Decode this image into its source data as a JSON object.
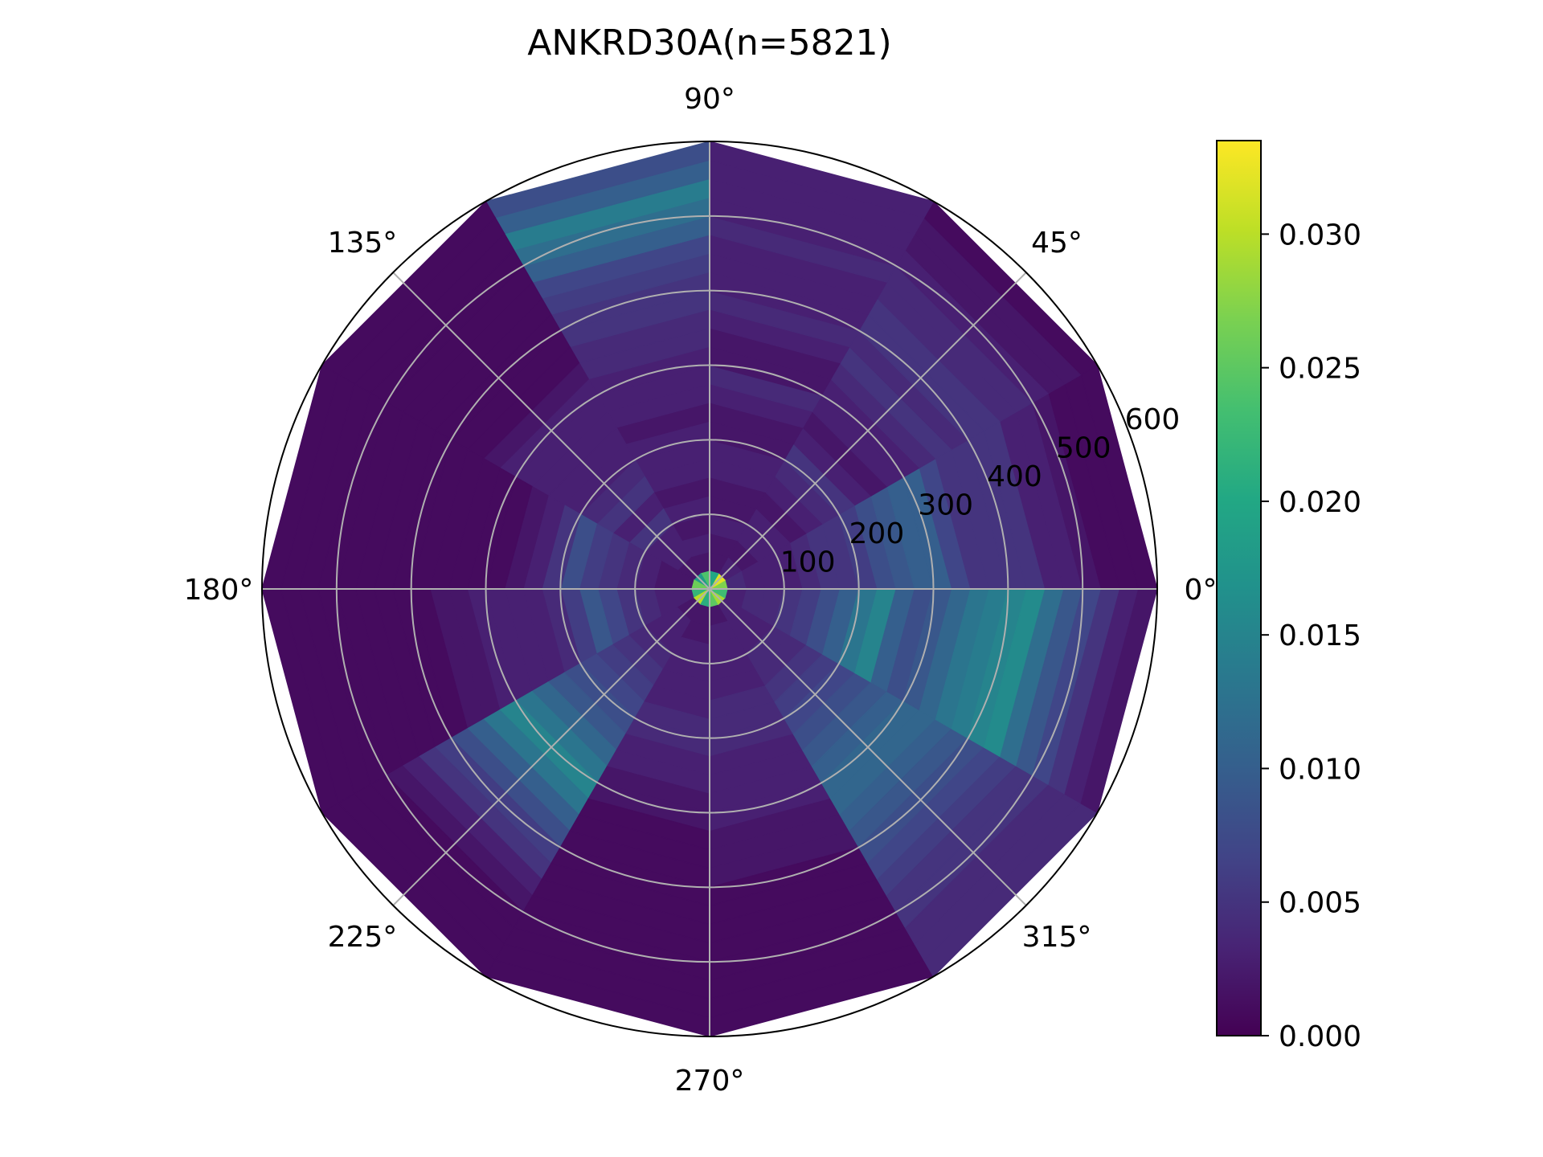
{
  "chart_data": {
    "type": "heatmap",
    "projection": "polar",
    "title": "ANKRD30A(n=5821)",
    "theta_unit": "degrees",
    "theta_tick_labels": [
      "0°",
      "45°",
      "90°",
      "135°",
      "180°",
      "225°",
      "270°",
      "315°"
    ],
    "r_tick_labels": [
      "100",
      "200",
      "300",
      "400",
      "500",
      "600"
    ],
    "r_ticks": [
      100,
      200,
      300,
      400,
      500,
      600
    ],
    "r_range": [
      0,
      600
    ],
    "grid": true,
    "colormap": "viridis",
    "colorbar": {
      "range": [
        0,
        0.0335
      ],
      "ticks": [
        0.0,
        0.005,
        0.01,
        0.015,
        0.02,
        0.025,
        0.03
      ],
      "tick_labels": [
        "0.000",
        "0.005",
        "0.010",
        "0.015",
        "0.020",
        "0.025",
        "0.030"
      ],
      "location": "right"
    },
    "theta_bin_edges_deg": [
      0,
      30,
      60,
      90,
      120,
      150,
      180,
      210,
      240,
      270,
      300,
      330,
      360
    ],
    "r_bin_edges": [
      0,
      25,
      50,
      75,
      100,
      125,
      150,
      175,
      200,
      225,
      250,
      275,
      300,
      325,
      350,
      375,
      400,
      425,
      450,
      475,
      500,
      525,
      550,
      575,
      600
    ],
    "values": [
      [
        0.027,
        0.004,
        0.003,
        0.003,
        0.003,
        0.004,
        0.005,
        0.005,
        0.006,
        0.008,
        0.009,
        0.01,
        0.01,
        0.007,
        0.005,
        0.005,
        0.005,
        0.005,
        0.003,
        0.003,
        0.002,
        0.001,
        0.001,
        0.001
      ],
      [
        0.032,
        0.003,
        0.002,
        0.003,
        0.003,
        0.002,
        0.003,
        0.004,
        0.005,
        0.003,
        0.002,
        0.003,
        0.003,
        0.004,
        0.005,
        0.004,
        0.005,
        0.005,
        0.004,
        0.004,
        0.003,
        0.002,
        0.002,
        0.001
      ],
      [
        0.02,
        0.002,
        0.002,
        0.003,
        0.002,
        0.002,
        0.003,
        0.003,
        0.002,
        0.002,
        0.003,
        0.004,
        0.002,
        0.002,
        0.003,
        0.004,
        0.003,
        0.003,
        0.003,
        0.004,
        0.003,
        0.003,
        0.003,
        0.003
      ],
      [
        0.024,
        0.002,
        0.003,
        0.002,
        0.003,
        0.002,
        0.003,
        0.003,
        0.003,
        0.002,
        0.003,
        0.003,
        0.003,
        0.004,
        0.004,
        0.005,
        0.005,
        0.006,
        0.007,
        0.01,
        0.012,
        0.014,
        0.01,
        0.008
      ],
      [
        0.018,
        0.002,
        0.003,
        0.003,
        0.005,
        0.003,
        0.005,
        0.004,
        0.003,
        0.003,
        0.003,
        0.003,
        0.003,
        0.002,
        0.001,
        0.001,
        0.001,
        0.001,
        0.001,
        0.001,
        0.001,
        0.001,
        0.001,
        0.001
      ],
      [
        0.026,
        0.002,
        0.002,
        0.003,
        0.004,
        0.005,
        0.006,
        0.008,
        0.005,
        0.003,
        0.002,
        0.001,
        0.001,
        0.001,
        0.001,
        0.001,
        0.001,
        0.001,
        0.001,
        0.001,
        0.001,
        0.001,
        0.001,
        0.001
      ],
      [
        0.022,
        0.003,
        0.003,
        0.004,
        0.005,
        0.007,
        0.009,
        0.006,
        0.004,
        0.003,
        0.003,
        0.003,
        0.003,
        0.002,
        0.002,
        0.001,
        0.001,
        0.001,
        0.001,
        0.001,
        0.001,
        0.001,
        0.001,
        0.001
      ],
      [
        0.03,
        0.002,
        0.003,
        0.003,
        0.004,
        0.005,
        0.006,
        0.007,
        0.008,
        0.009,
        0.011,
        0.013,
        0.015,
        0.013,
        0.01,
        0.008,
        0.006,
        0.005,
        0.003,
        0.002,
        0.001,
        0.001,
        0.001,
        0.001
      ],
      [
        0.021,
        0.002,
        0.002,
        0.003,
        0.003,
        0.003,
        0.003,
        0.004,
        0.004,
        0.003,
        0.003,
        0.002,
        0.002,
        0.001,
        0.001,
        0.001,
        0.001,
        0.001,
        0.001,
        0.001,
        0.001,
        0.001,
        0.001,
        0.001
      ],
      [
        0.025,
        0.002,
        0.003,
        0.003,
        0.003,
        0.003,
        0.004,
        0.004,
        0.004,
        0.003,
        0.003,
        0.003,
        0.003,
        0.002,
        0.002,
        0.002,
        0.001,
        0.001,
        0.001,
        0.001,
        0.001,
        0.001,
        0.001,
        0.001
      ],
      [
        0.029,
        0.003,
        0.003,
        0.003,
        0.004,
        0.004,
        0.005,
        0.006,
        0.007,
        0.008,
        0.009,
        0.01,
        0.011,
        0.011,
        0.01,
        0.009,
        0.008,
        0.007,
        0.006,
        0.005,
        0.005,
        0.004,
        0.004,
        0.004
      ],
      [
        0.023,
        0.003,
        0.004,
        0.004,
        0.005,
        0.006,
        0.008,
        0.01,
        0.013,
        0.015,
        0.01,
        0.008,
        0.009,
        0.011,
        0.013,
        0.014,
        0.015,
        0.016,
        0.012,
        0.009,
        0.007,
        0.005,
        0.003,
        0.002
      ]
    ]
  }
}
